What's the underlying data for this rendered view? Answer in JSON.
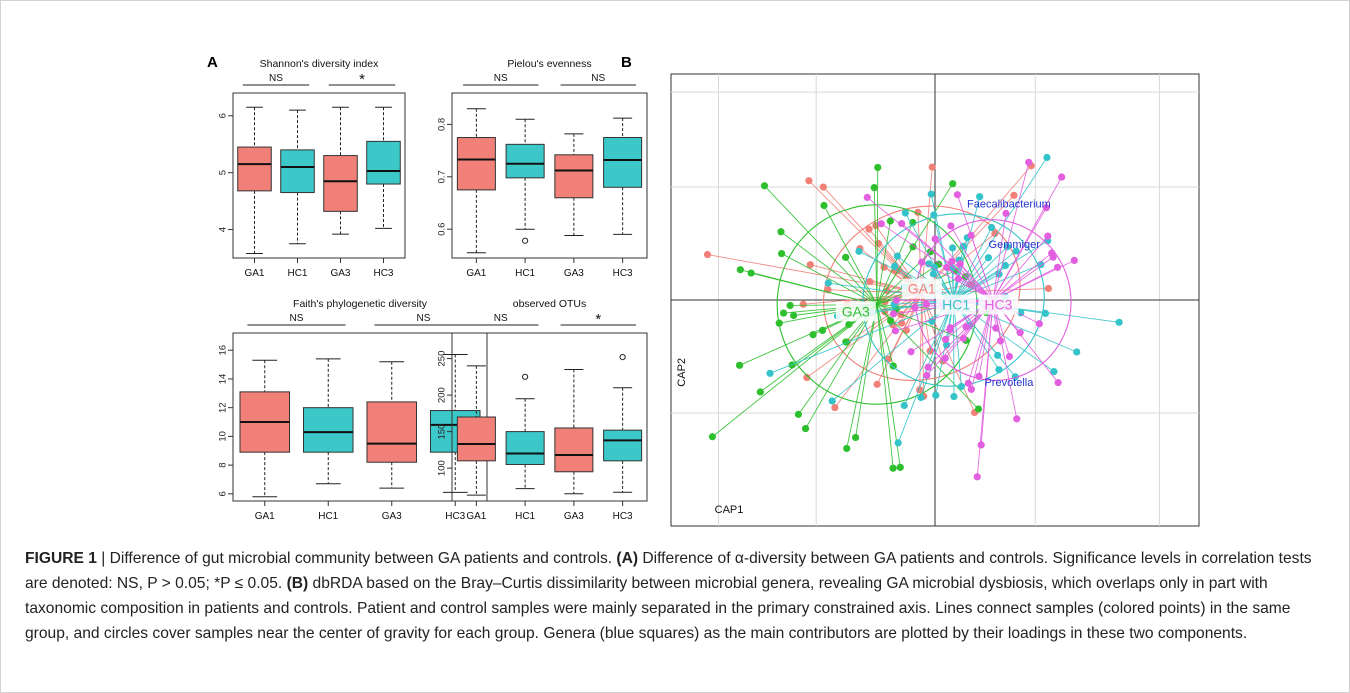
{
  "panel_a_label": "A",
  "panel_b_label": "B",
  "chart_data": [
    {
      "type": "box",
      "title": "Shannon's diversity index",
      "categories": [
        "GA1",
        "HC1",
        "GA3",
        "HC3"
      ],
      "ylim": [
        3.5,
        6.4
      ],
      "yticks": [
        "4",
        "5",
        "6"
      ],
      "ytick_values": [
        4,
        5,
        6
      ],
      "boxes": [
        {
          "min": 3.58,
          "q1": 4.68,
          "median": 5.15,
          "q3": 5.45,
          "max": 6.15,
          "outliers": []
        },
        {
          "min": 3.75,
          "q1": 4.65,
          "median": 5.1,
          "q3": 5.4,
          "max": 6.1,
          "outliers": []
        },
        {
          "min": 3.92,
          "q1": 4.32,
          "median": 4.85,
          "q3": 5.3,
          "max": 6.15,
          "outliers": []
        },
        {
          "min": 4.02,
          "q1": 4.8,
          "median": 5.03,
          "q3": 5.55,
          "max": 6.15,
          "outliers": []
        }
      ],
      "comparisons": [
        {
          "pair": [
            "GA1",
            "HC1"
          ],
          "label": "NS"
        },
        {
          "pair": [
            "GA3",
            "HC3"
          ],
          "label": "*"
        }
      ]
    },
    {
      "type": "box",
      "title": "Pielou's evenness",
      "categories": [
        "GA1",
        "HC1",
        "GA3",
        "HC3"
      ],
      "ylim": [
        0.545,
        0.86
      ],
      "yticks": [
        "0.6",
        "0.7",
        "0.8"
      ],
      "ytick_values": [
        0.6,
        0.7,
        0.8
      ],
      "boxes": [
        {
          "min": 0.555,
          "q1": 0.675,
          "median": 0.733,
          "q3": 0.775,
          "max": 0.83,
          "outliers": []
        },
        {
          "min": 0.6,
          "q1": 0.698,
          "median": 0.725,
          "q3": 0.762,
          "max": 0.81,
          "outliers": [
            0.578
          ]
        },
        {
          "min": 0.588,
          "q1": 0.66,
          "median": 0.712,
          "q3": 0.742,
          "max": 0.782,
          "outliers": []
        },
        {
          "min": 0.59,
          "q1": 0.68,
          "median": 0.732,
          "q3": 0.775,
          "max": 0.812,
          "outliers": []
        }
      ],
      "comparisons": [
        {
          "pair": [
            "GA1",
            "HC1"
          ],
          "label": "NS"
        },
        {
          "pair": [
            "GA3",
            "HC3"
          ],
          "label": "NS"
        }
      ]
    },
    {
      "type": "box",
      "title": "Faith's phylogenetic diversity",
      "categories": [
        "GA1",
        "HC1",
        "GA3",
        "HC3"
      ],
      "ylim": [
        5.5,
        17.2
      ],
      "yticks": [
        "6",
        "8",
        "10",
        "12",
        "14",
        "16"
      ],
      "ytick_values": [
        6,
        8,
        10,
        12,
        14,
        16
      ],
      "boxes": [
        {
          "min": 5.8,
          "q1": 8.9,
          "median": 11.0,
          "q3": 13.1,
          "max": 15.3,
          "outliers": []
        },
        {
          "min": 6.7,
          "q1": 8.9,
          "median": 10.3,
          "q3": 12.0,
          "max": 15.4,
          "outliers": []
        },
        {
          "min": 6.4,
          "q1": 8.2,
          "median": 9.5,
          "q3": 12.4,
          "max": 15.2,
          "outliers": []
        },
        {
          "min": 6.1,
          "q1": 8.9,
          "median": 10.8,
          "q3": 11.8,
          "max": 15.7,
          "outliers": []
        }
      ],
      "comparisons": [
        {
          "pair": [
            "GA1",
            "HC1"
          ],
          "label": "NS"
        },
        {
          "pair": [
            "GA3",
            "HC3"
          ],
          "label": "NS"
        }
      ]
    },
    {
      "type": "box",
      "title": "observed OTUs",
      "categories": [
        "GA1",
        "HC1",
        "GA3",
        "HC3"
      ],
      "ylim": [
        55,
        285
      ],
      "yticks": [
        "100",
        "150",
        "200",
        "250"
      ],
      "ytick_values": [
        100,
        150,
        200,
        250
      ],
      "boxes": [
        {
          "min": 63,
          "q1": 110,
          "median": 133,
          "q3": 170,
          "max": 240,
          "outliers": []
        },
        {
          "min": 72,
          "q1": 105,
          "median": 120,
          "q3": 150,
          "max": 195,
          "outliers": [
            225
          ]
        },
        {
          "min": 65,
          "q1": 95,
          "median": 118,
          "q3": 155,
          "max": 235,
          "outliers": []
        },
        {
          "min": 67,
          "q1": 110,
          "median": 138,
          "q3": 152,
          "max": 210,
          "outliers": [
            252
          ]
        }
      ],
      "comparisons": [
        {
          "pair": [
            "GA1",
            "HC1"
          ],
          "label": "NS"
        },
        {
          "pair": [
            "GA3",
            "HC3"
          ],
          "label": "*"
        }
      ]
    },
    {
      "type": "scatter",
      "xlabel": "CAP1",
      "ylabel": "CAP2",
      "xlim": [
        -1,
        1
      ],
      "ylim": [
        -1,
        1
      ],
      "groups": [
        {
          "name": "GA1",
          "color": "#f08078",
          "label_pos": [
            -0.05,
            0.05
          ]
        },
        {
          "name": "GA3",
          "color": "#2dbf2d",
          "label_pos": [
            -0.3,
            -0.05
          ]
        },
        {
          "name": "HC1",
          "color": "#33c3c8",
          "label_pos": [
            0.08,
            -0.02
          ]
        },
        {
          "name": "HC3",
          "color": "#e25fe0",
          "label_pos": [
            0.24,
            -0.02
          ]
        }
      ],
      "genera": [
        {
          "name": "Faecalibacterium",
          "x": 0.28,
          "y": 0.41
        },
        {
          "name": "Gemmiger",
          "x": 0.3,
          "y": 0.23
        },
        {
          "name": "Prevotella",
          "x": 0.28,
          "y": -0.38
        }
      ]
    }
  ],
  "caption": {
    "figure_label": "FIGURE 1",
    "separator": " | ",
    "text1": "Difference of gut microbial community between GA patients and controls. ",
    "a_label": "(A)",
    "text2": " Difference of α-diversity between GA patients and controls. Significance levels in correlation tests are denoted: NS, P > 0.05; *P ≤ 0.05. ",
    "b_label": "(B)",
    "text3": " dbRDA based on the Bray–Curtis dissimilarity between microbial genera, revealing GA microbial dysbiosis, which overlaps only in part with taxonomic composition in patients and controls. Patient and control samples were mainly separated in the primary constrained axis. Lines connect samples (colored points) in the same group, and circles cover samples near the center of gravity for each group. Genera (blue squares) as the main contributors are plotted by their loadings in these two components."
  }
}
